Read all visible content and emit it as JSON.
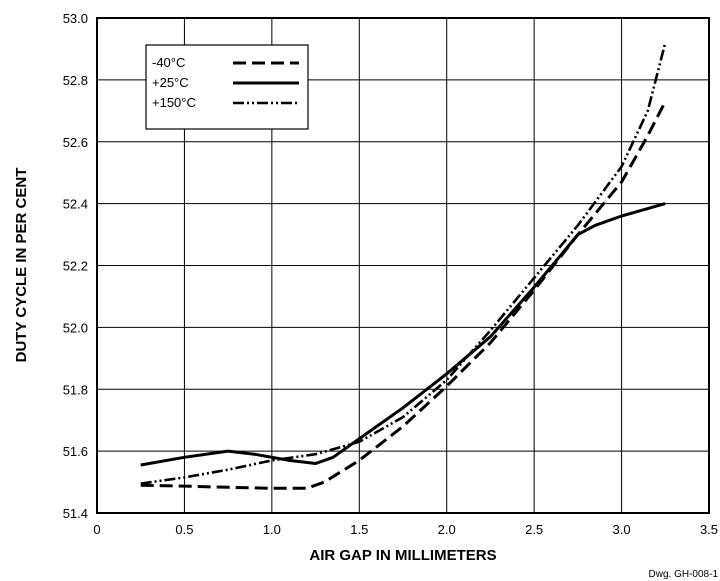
{
  "chart_data": {
    "type": "line",
    "title": "",
    "xlabel": "AIR GAP IN MILLIMETERS",
    "ylabel": "DUTY CYCLE IN PER CENT",
    "xlim": [
      0,
      3.5
    ],
    "ylim": [
      51.4,
      53.0
    ],
    "xticks": [
      "0",
      "0.5",
      "1.0",
      "1.5",
      "2.0",
      "2.5",
      "3.0",
      "3.5"
    ],
    "yticks": [
      "51.4",
      "51.6",
      "51.8",
      "52.0",
      "52.2",
      "52.4",
      "52.6",
      "52.8",
      "53.0"
    ],
    "grid": true,
    "legend_position": "top-left",
    "series": [
      {
        "name": "-40°C",
        "style": "dashed",
        "x": [
          0.25,
          0.5,
          0.75,
          1.0,
          1.2,
          1.3,
          1.5,
          1.75,
          2.0,
          2.25,
          2.5,
          2.75,
          3.0,
          3.15,
          3.25
        ],
        "y": [
          51.49,
          51.487,
          51.483,
          51.48,
          51.48,
          51.5,
          51.57,
          51.68,
          51.81,
          51.95,
          52.12,
          52.3,
          52.47,
          52.62,
          52.73
        ]
      },
      {
        "name": "+25°C",
        "style": "solid",
        "x": [
          0.25,
          0.5,
          0.75,
          0.9,
          1.0,
          1.1,
          1.25,
          1.35,
          1.5,
          1.75,
          2.0,
          2.25,
          2.5,
          2.75,
          2.85,
          3.0,
          3.25
        ],
        "y": [
          51.555,
          51.58,
          51.6,
          51.59,
          51.58,
          51.57,
          51.56,
          51.58,
          51.64,
          51.74,
          51.85,
          51.97,
          52.13,
          52.3,
          52.33,
          52.36,
          52.4
        ]
      },
      {
        "name": "+150°C",
        "style": "dash-dot-dot",
        "x": [
          0.25,
          0.5,
          0.75,
          1.0,
          1.25,
          1.5,
          1.75,
          2.0,
          2.25,
          2.5,
          2.75,
          3.0,
          3.15,
          3.25
        ],
        "y": [
          51.495,
          51.515,
          51.54,
          51.57,
          51.59,
          51.63,
          51.71,
          51.83,
          51.99,
          52.16,
          52.33,
          52.52,
          52.7,
          52.92
        ]
      }
    ]
  },
  "drawing_id": "Dwg. GH-008-1"
}
